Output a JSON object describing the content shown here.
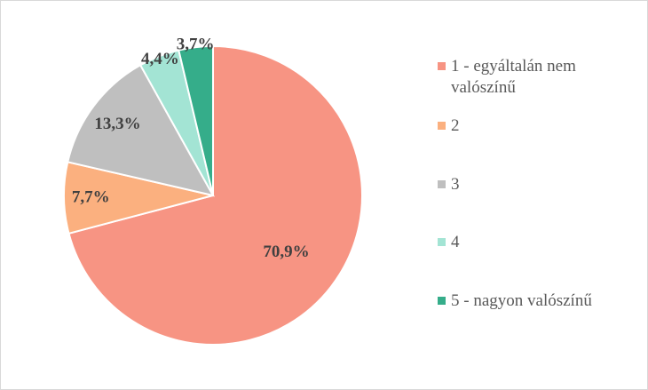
{
  "chart_data": {
    "type": "pie",
    "title": "",
    "categories": [
      "1 - egyáltalán nem valószínű",
      "2",
      "3",
      "4",
      "5 - nagyon valószínű"
    ],
    "values": [
      70.9,
      7.7,
      13.3,
      4.4,
      3.7
    ],
    "labels": [
      "70,9%",
      "7,7%",
      "13,3%",
      "4,4%",
      "3,7%"
    ],
    "colors": [
      "#f79483",
      "#fbb07f",
      "#bfbfbf",
      "#a3e4d4",
      "#35ad8a"
    ],
    "start_angle": "12 o'clock",
    "direction": "clockwise",
    "legend_position": "right"
  }
}
